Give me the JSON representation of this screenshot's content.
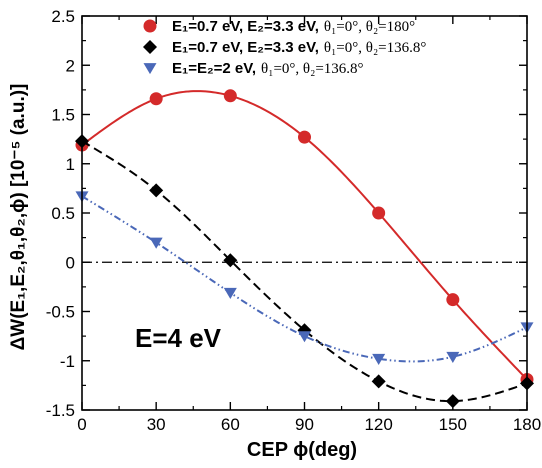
{
  "chart_data": {
    "type": "line",
    "xlabel": "CEP ϕ(deg)",
    "ylabel": "ΔW(E₁,E₂,θ₁,θ₂,ϕ) [10⁻⁵ (a.u.)]",
    "xlim": [
      0,
      180
    ],
    "ylim": [
      -1.5,
      2.5
    ],
    "x_ticks": [
      0,
      30,
      60,
      90,
      120,
      150,
      180
    ],
    "y_ticks": [
      -1.5,
      -1,
      -0.5,
      0,
      0.5,
      1,
      1.5,
      2,
      2.5
    ],
    "x_tick_labels": [
      "0",
      "30",
      "60",
      "90",
      "120",
      "150",
      "180"
    ],
    "y_tick_labels": [
      "-1.5",
      "-1",
      "-0.5",
      "0",
      "0.5",
      "1",
      "1.5",
      "2",
      "2.5"
    ],
    "grid": false,
    "legend_position": "top-right",
    "annotation": "E=4 eV",
    "zero_line": 0,
    "series": [
      {
        "name": "E1=0.7 eV, E2=3.3 eV, θ1=0°, θ2=180°",
        "legend_main": "E₁=0.7 eV, E₂=3.3 eV,",
        "legend_theta": "θ₁=0°, θ₂=180°",
        "color": "#d42a2a",
        "marker": "circle",
        "line_style": "solid",
        "x": [
          0,
          30,
          60,
          90,
          120,
          150,
          180
        ],
        "y": [
          1.19,
          1.66,
          1.69,
          1.27,
          0.5,
          -0.38,
          -1.19
        ]
      },
      {
        "name": "E1=0.7 eV, E2=3.3 eV, θ1=0°, θ2=136.8°",
        "legend_main": "E₁=0.7 eV, E₂=3.3 eV,",
        "legend_theta": "θ₁=0°, θ₂=136.8°",
        "color": "#000000",
        "marker": "diamond",
        "line_style": "dashed",
        "x": [
          0,
          30,
          60,
          90,
          120,
          150,
          180
        ],
        "y": [
          1.23,
          0.73,
          0.02,
          -0.69,
          -1.21,
          -1.41,
          -1.23
        ]
      },
      {
        "name": "E1=E2=2 eV, θ1=0°, θ2=136.8°",
        "legend_main": "E₁=E₂=2 eV,",
        "legend_theta": "θ₁=0°, θ₂=136.8°",
        "color": "#4a68b8",
        "marker": "triangle-down",
        "line_style": "dash-dot-dot",
        "x": [
          0,
          30,
          60,
          90,
          120,
          150,
          180
        ],
        "y": [
          0.67,
          0.2,
          -0.31,
          -0.75,
          -0.98,
          -0.96,
          -0.66
        ]
      }
    ]
  }
}
